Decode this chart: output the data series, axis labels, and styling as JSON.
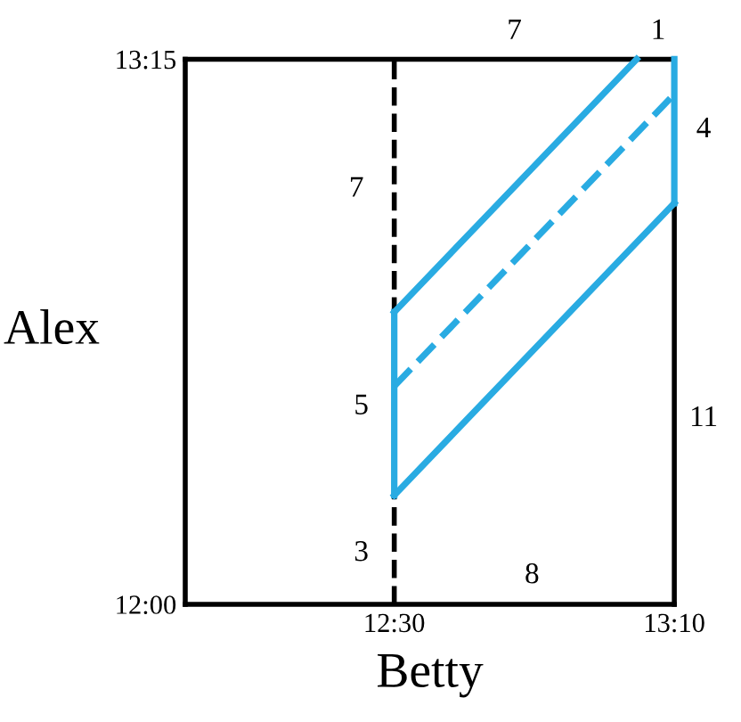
{
  "chart_data": {
    "type": "line",
    "xlabel": "Betty",
    "ylabel": "Alex",
    "xlim": [
      12,
      13.17
    ],
    "ylim": [
      12,
      13.25
    ],
    "xticks": [
      {
        "value": 12.5,
        "label": "12:30"
      },
      {
        "value": 13.17,
        "label": "13:10"
      }
    ],
    "yticks": [
      {
        "value": 12,
        "label": "12:00"
      },
      {
        "value": 13.25,
        "label": "13:15"
      }
    ],
    "grid": false,
    "legend": false,
    "marker": "none",
    "ref_lines": [
      {
        "axis": "x",
        "value": 12.5,
        "color": "#000000",
        "line_style": "dashed"
      }
    ],
    "series": [
      {
        "color": "#29abe2",
        "line_style": "solid",
        "x": [
          12.5,
          12.5
        ],
        "values": [
          12.25,
          12.67
        ]
      },
      {
        "color": "#29abe2",
        "line_style": "solid",
        "x": [
          12.5,
          13.08
        ],
        "values": [
          12.67,
          13.25
        ]
      },
      {
        "color": "#29abe2",
        "line_style": "solid",
        "x": [
          12.5,
          13.17
        ],
        "values": [
          12.25,
          12.92
        ]
      },
      {
        "color": "#29abe2",
        "line_style": "solid",
        "x": [
          13.17,
          13.17
        ],
        "values": [
          12.92,
          13.25
        ]
      },
      {
        "color": "#29abe2",
        "line_style": "dashed",
        "x": [
          12.5,
          13.17
        ],
        "values": [
          12.5,
          13.17
        ]
      }
    ],
    "annotations": [
      "7",
      "1",
      "4",
      "11",
      "8",
      "3",
      "5",
      "7"
    ]
  }
}
